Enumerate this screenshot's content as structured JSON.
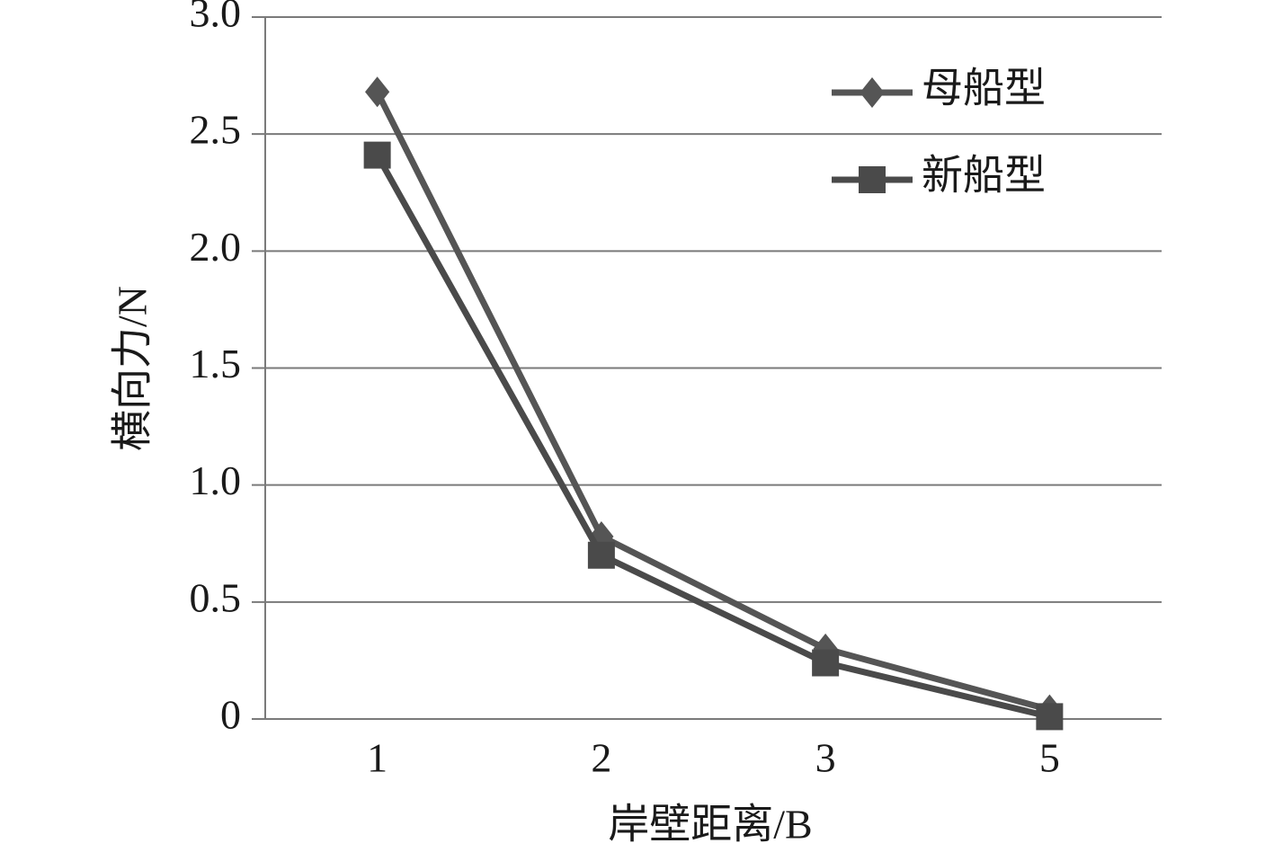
{
  "chart_data": {
    "type": "line",
    "x_label": "岸壁距离/B",
    "y_label": "横向力/N",
    "categories": [
      "1",
      "2",
      "3",
      "5"
    ],
    "series": [
      {
        "name": "母船型",
        "color": "#555555",
        "marker": "diamond",
        "values": [
          2.68,
          0.78,
          0.3,
          0.04
        ]
      },
      {
        "name": "新船型",
        "color": "#4a4a4a",
        "marker": "square",
        "values": [
          2.41,
          0.7,
          0.24,
          0.01
        ]
      }
    ],
    "ylim": [
      0,
      3
    ],
    "yticks": [
      0,
      0.5,
      {
        "value": 1,
        "label": "1.0"
      },
      1.5,
      {
        "value": 2,
        "label": "2.0"
      },
      2.5,
      {
        "value": 3,
        "label": "3.0"
      }
    ],
    "grid": true,
    "legend": "upper right"
  }
}
